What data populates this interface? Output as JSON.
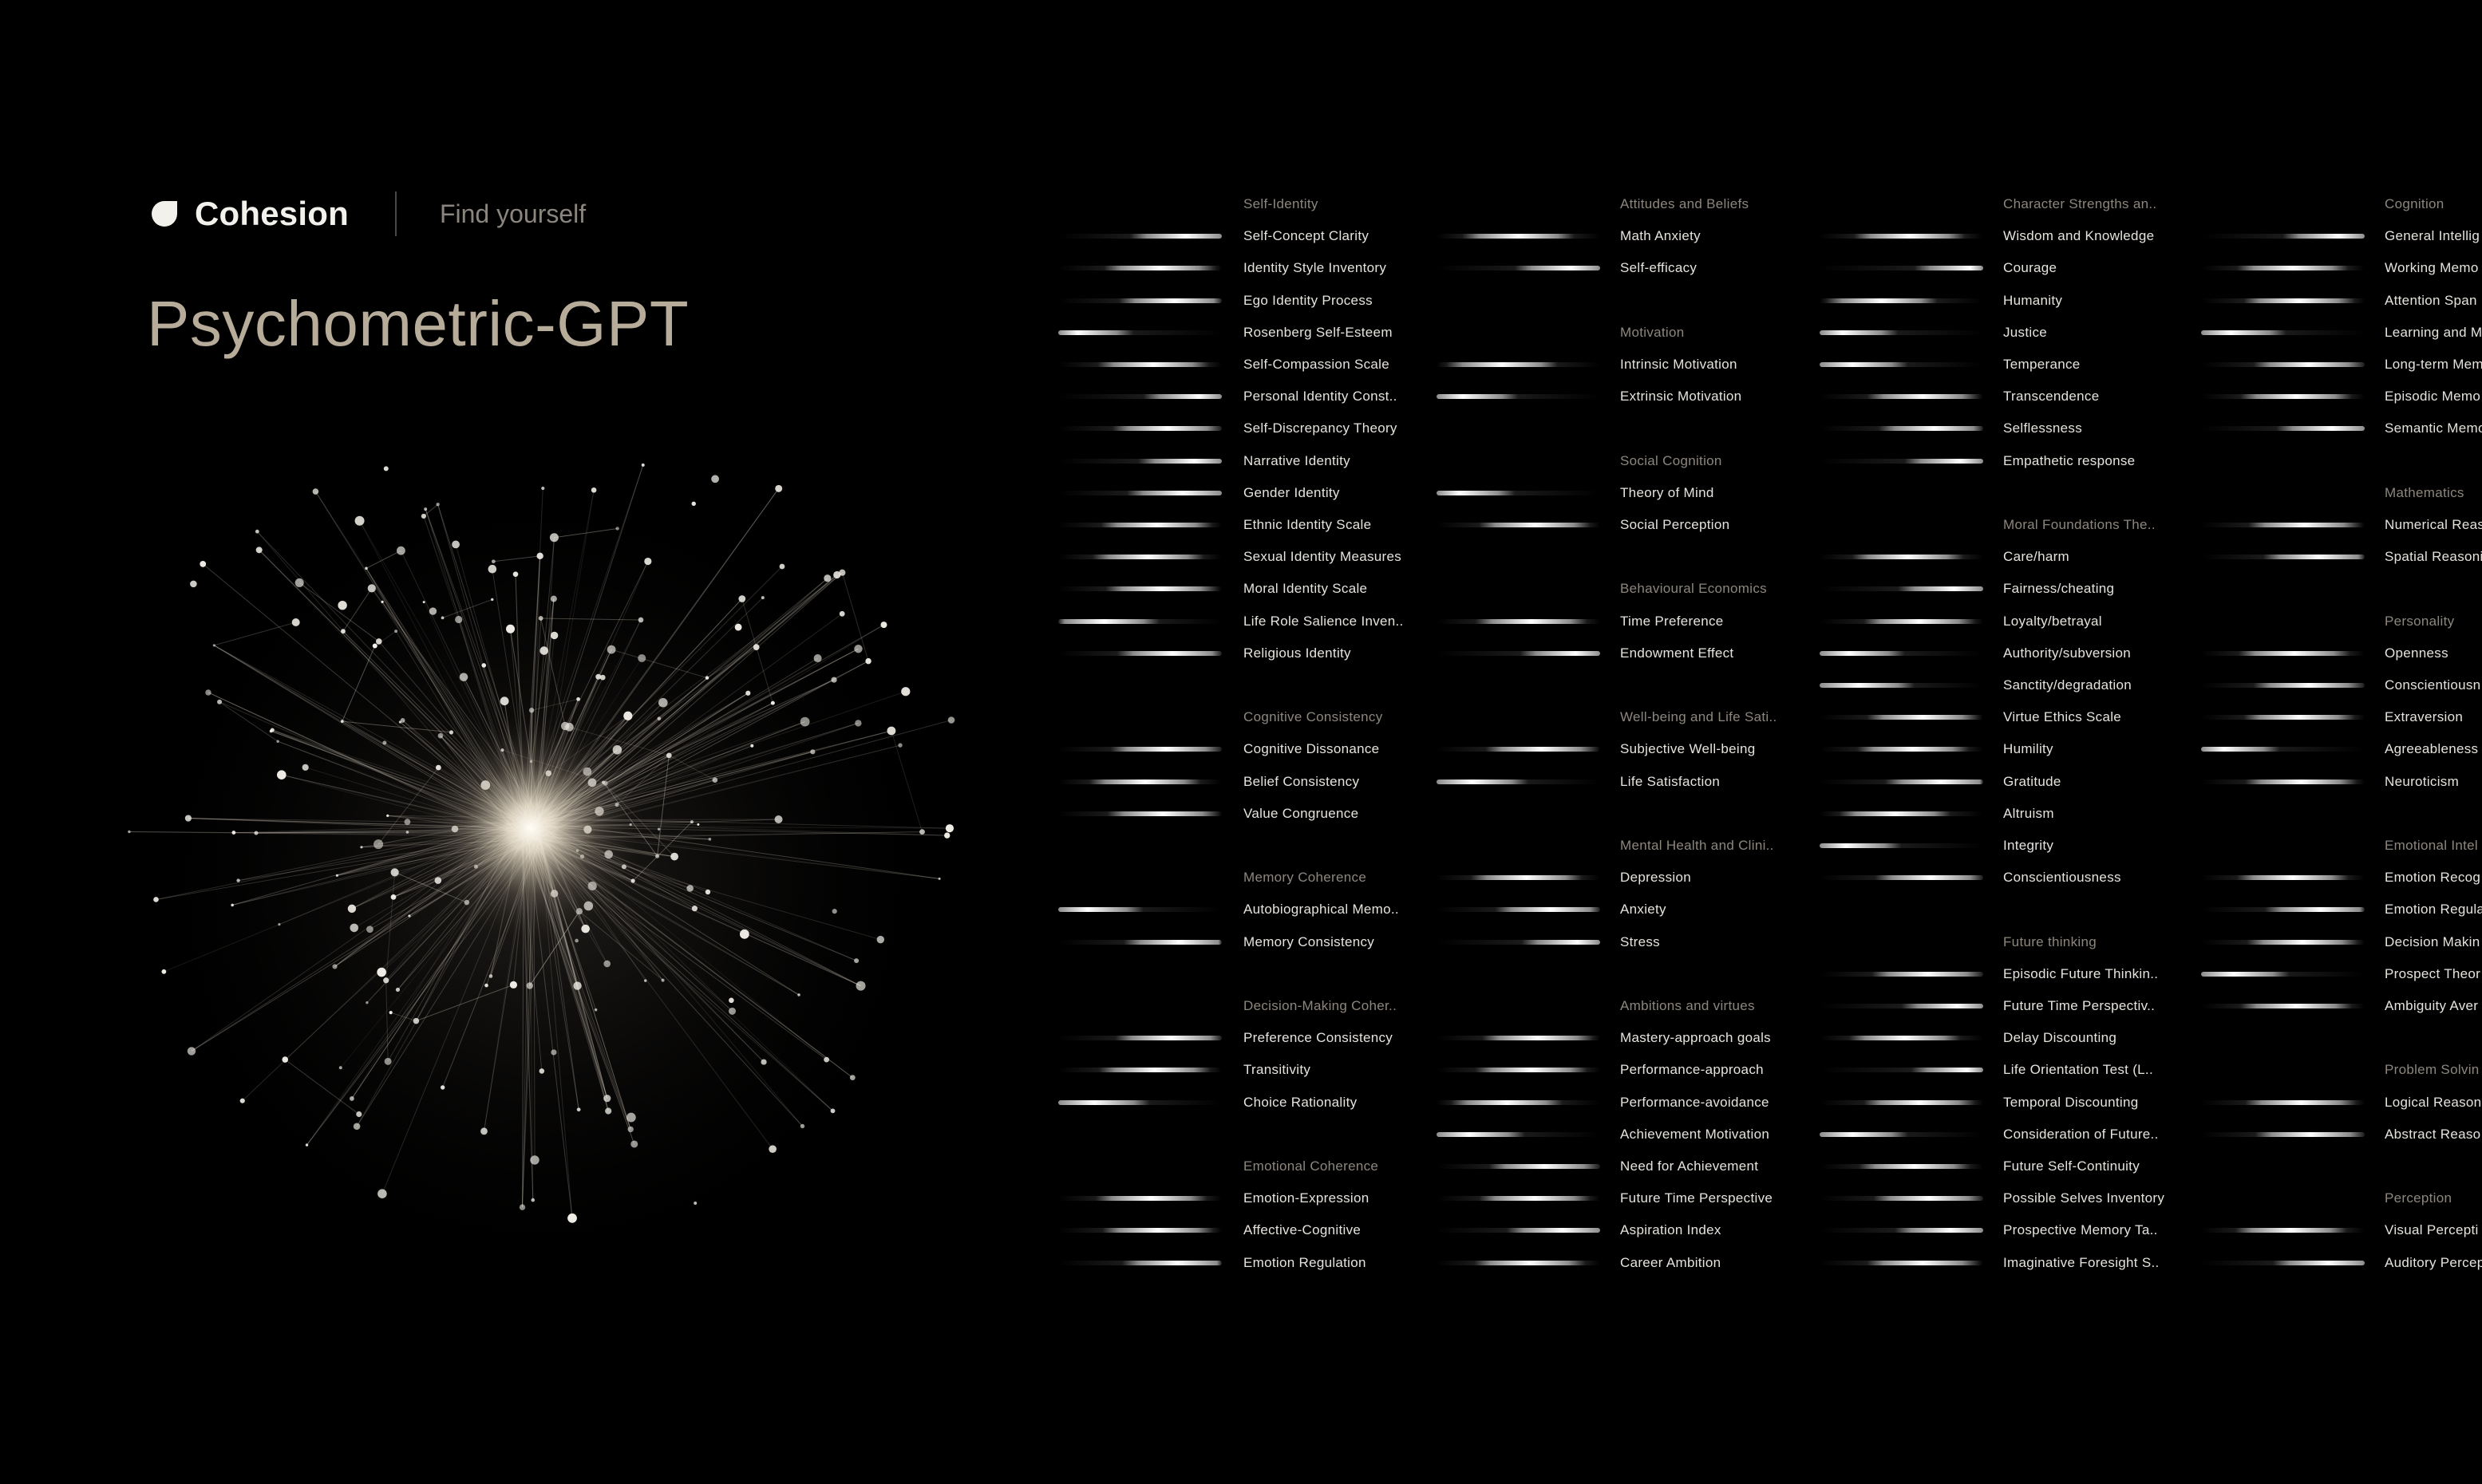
{
  "header": {
    "logo_text": "Cohesion",
    "tagline": "Find yourself",
    "title": "Psychometric-GPT",
    "logo_icon": "leaf-drop-icon"
  },
  "colors": {
    "background": "#000000",
    "accent": "#b7ab9a",
    "item_text": "#e6e3dd",
    "category_text": "#8c867d"
  },
  "columns": [
    {
      "groups": [
        {
          "title": "Self-Identity",
          "items": [
            {
              "label": "Self-Concept Clarity",
              "level": 0.78
            },
            {
              "label": "Identity Style Inventory",
              "level": 0.62
            },
            {
              "label": "Ego Identity Process",
              "level": 0.71
            },
            {
              "label": "Rosenberg Self-Esteem",
              "level": 0.12
            },
            {
              "label": "Self-Compassion Scale",
              "level": 0.58
            },
            {
              "label": "Personal Identity Const..",
              "level": 0.86
            },
            {
              "label": "Self-Discrepancy Theory",
              "level": 0.67
            },
            {
              "label": "Narrative Identity",
              "level": 0.83
            },
            {
              "label": "Gender Identity",
              "level": 0.76
            },
            {
              "label": "Ethnic Identity Scale",
              "level": 0.6
            },
            {
              "label": "Sexual Identity Measures",
              "level": 0.55
            },
            {
              "label": "Moral Identity Scale",
              "level": 0.63
            },
            {
              "label": "Life Role Salience Inven..",
              "level": 0.28
            },
            {
              "label": "Religious Identity",
              "level": 0.7
            }
          ]
        },
        {
          "title": "Cognitive Consistency",
          "items": [
            {
              "label": "Cognitive Dissonance",
              "level": 0.66
            },
            {
              "label": "Belief Consistency",
              "level": 0.53
            },
            {
              "label": "Value Congruence",
              "level": 0.64
            }
          ]
        },
        {
          "title": "Memory Coherence",
          "items": [
            {
              "label": "Autobiographical Memo..",
              "level": 0.18
            },
            {
              "label": "Memory Consistency",
              "level": 0.74
            }
          ]
        },
        {
          "title": "Decision-Making Coher..",
          "items": [
            {
              "label": "Preference Consistency",
              "level": 0.69
            },
            {
              "label": "Transitivity",
              "level": 0.59
            },
            {
              "label": "Choice Rationality",
              "level": 0.22
            }
          ]
        },
        {
          "title": "Emotional Coherence",
          "items": [
            {
              "label": "Emotion-Expression",
              "level": 0.57
            },
            {
              "label": "Affective-Cognitive",
              "level": 0.61
            },
            {
              "label": "Emotion Regulation",
              "level": 0.73
            }
          ]
        }
      ]
    },
    {
      "groups": [
        {
          "title": "Attitudes and Beliefs",
          "items": [
            {
              "label": "Math Anxiety",
              "level": 0.5
            },
            {
              "label": "Self-efficacy",
              "level": 0.82
            }
          ]
        },
        {
          "title": "Motivation",
          "items": [
            {
              "label": "Intrinsic Motivation",
              "level": 0.4
            },
            {
              "label": "Extrinsic Motivation",
              "level": 0.16
            }
          ]
        },
        {
          "title": "Social Cognition",
          "items": [
            {
              "label": "Theory of Mind",
              "level": 0.14
            },
            {
              "label": "Social Perception",
              "level": 0.6
            }
          ]
        },
        {
          "title": "Behavioural Economics",
          "items": [
            {
              "label": "Time Preference",
              "level": 0.58
            },
            {
              "label": "Endowment Effect",
              "level": 0.85
            }
          ]
        },
        {
          "title": "Well-being and Life Sati..",
          "items": [
            {
              "label": "Subjective Well-being",
              "level": 0.64
            },
            {
              "label": "Life Satisfaction",
              "level": 0.22
            }
          ]
        },
        {
          "title": "Mental Health and Clini..",
          "items": [
            {
              "label": "Depression",
              "level": 0.55
            },
            {
              "label": "Anxiety",
              "level": 0.7
            },
            {
              "label": "Stress",
              "level": 0.86
            }
          ]
        },
        {
          "title": "Ambitions and virtues",
          "items": [
            {
              "label": "Mastery-approach goals",
              "level": 0.62
            },
            {
              "label": "Performance-approach",
              "level": 0.58
            },
            {
              "label": "Performance-avoidance",
              "level": 0.43
            },
            {
              "label": "Achievement Motivation",
              "level": 0.2
            },
            {
              "label": "Need for Achievement",
              "level": 0.66
            },
            {
              "label": "Future Time Perspective",
              "level": 0.6
            },
            {
              "label": "Aspiration Index",
              "level": 0.77
            },
            {
              "label": "Career Ambition",
              "level": 0.57
            }
          ]
        }
      ]
    },
    {
      "groups": [
        {
          "title": "Character Strengths an..",
          "items": [
            {
              "label": "Wisdom and Knowledge",
              "level": 0.55
            },
            {
              "label": "Courage",
              "level": 0.92
            },
            {
              "label": "Humanity",
              "level": 0.38
            },
            {
              "label": "Justice",
              "level": 0.14
            },
            {
              "label": "Temperance",
              "level": 0.2
            },
            {
              "label": "Transcendence",
              "level": 0.63
            },
            {
              "label": "Selflessness",
              "level": 0.7
            },
            {
              "label": "Empathetic response",
              "level": 0.86
            }
          ]
        },
        {
          "title": "Moral Foundations The..",
          "items": [
            {
              "label": "Care/harm",
              "level": 0.54
            },
            {
              "label": "Fairness/cheating",
              "level": 0.82
            },
            {
              "label": "Loyalty/betrayal",
              "level": 0.61
            },
            {
              "label": "Authority/subversion",
              "level": 0.18
            },
            {
              "label": "Sanctity/degradation",
              "level": 0.24
            },
            {
              "label": "Virtue Ethics Scale",
              "level": 0.63
            },
            {
              "label": "Humility",
              "level": 0.57
            },
            {
              "label": "Gratitude",
              "level": 0.74
            },
            {
              "label": "Altruism",
              "level": 0.46
            },
            {
              "label": "Integrity",
              "level": 0.16
            },
            {
              "label": "Conscientiousness",
              "level": 0.68
            }
          ]
        },
        {
          "title": "Future thinking",
          "items": [
            {
              "label": "Episodic Future Thinkin..",
              "level": 0.66
            },
            {
              "label": "Future Time Perspectiv..",
              "level": 0.84
            },
            {
              "label": "Delay Discounting",
              "level": 0.52
            },
            {
              "label": "Life Orientation Test (L..",
              "level": 0.9
            },
            {
              "label": "Temporal Discounting",
              "level": 0.61
            },
            {
              "label": "Consideration of Future..",
              "level": 0.2
            },
            {
              "label": "Future Self-Continuity",
              "level": 0.58
            },
            {
              "label": "Possible Selves Inventory",
              "level": 0.67
            },
            {
              "label": "Prospective Memory Ta..",
              "level": 0.8
            },
            {
              "label": "Imaginative Foresight S..",
              "level": 0.63
            }
          ]
        }
      ]
    },
    {
      "groups": [
        {
          "title": "Cognition",
          "items": [
            {
              "label": "General Intellig",
              "level": 0.84
            },
            {
              "label": "Working Memo",
              "level": 0.56
            },
            {
              "label": "Attention Span",
              "level": 0.6
            },
            {
              "label": "Learning and M",
              "level": 0.18
            },
            {
              "label": "Long-term Mem",
              "level": 0.66
            },
            {
              "label": "Episodic Memo",
              "level": 0.58
            },
            {
              "label": "Semantic Memo",
              "level": 0.8
            }
          ]
        },
        {
          "title": "Mathematics",
          "items": [
            {
              "label": "Numerical Reas",
              "level": 0.63
            },
            {
              "label": "Spatial Reasoni",
              "level": 0.72
            }
          ]
        },
        {
          "title": "Personality",
          "items": [
            {
              "label": "Openness",
              "level": 0.57
            },
            {
              "label": "Conscientiousn",
              "level": 0.66
            },
            {
              "label": "Extraversion",
              "level": 0.6
            },
            {
              "label": "Agreeableness",
              "level": 0.14
            },
            {
              "label": "Neuroticism",
              "level": 0.61
            }
          ]
        },
        {
          "title": "Emotional Intel",
          "items": [
            {
              "label": "Emotion Recog",
              "level": 0.56
            },
            {
              "label": "Emotion Regula",
              "level": 0.73
            },
            {
              "label": "Decision Makin",
              "level": 0.62
            },
            {
              "label": "Prospect Theor",
              "level": 0.2
            },
            {
              "label": "Ambiguity Aver",
              "level": 0.58
            }
          ]
        },
        {
          "title": "Problem Solvin",
          "items": [
            {
              "label": "Logical Reason",
              "level": 0.61
            },
            {
              "label": "Abstract Reaso",
              "level": 0.67
            }
          ]
        },
        {
          "title": "Perception",
          "items": [
            {
              "label": "Visual Percepti",
              "level": 0.55
            },
            {
              "label": "Auditory Percep",
              "level": 0.78
            }
          ]
        }
      ]
    }
  ]
}
